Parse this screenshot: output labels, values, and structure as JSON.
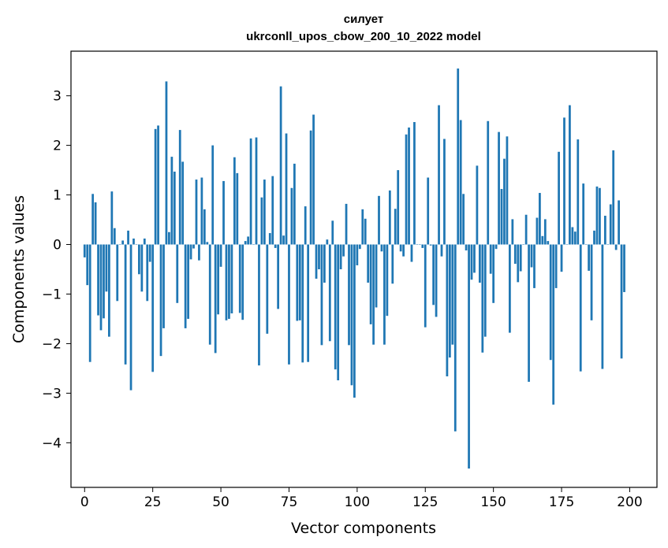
{
  "chart_data": {
    "type": "bar",
    "title": "силует",
    "subtitle": "ukrconll_upos_cbow_200_10_2022 model",
    "xlabel": "Vector components",
    "ylabel": "Components values",
    "xlim": [
      -5,
      210
    ],
    "ylim": [
      -4.9,
      3.9
    ],
    "xticks": [
      0,
      25,
      50,
      75,
      100,
      125,
      150,
      175,
      200
    ],
    "yticks": [
      -4,
      -3,
      -2,
      -1,
      0,
      1,
      2,
      3
    ],
    "bar_color": "#1f77b4",
    "grid": false,
    "values": [
      -0.26,
      -0.82,
      -2.37,
      1.02,
      0.85,
      -1.43,
      -1.73,
      -1.49,
      -0.95,
      -1.86,
      1.07,
      0.33,
      -1.14,
      0.0,
      0.08,
      -2.42,
      0.28,
      -2.94,
      0.12,
      0.0,
      -0.6,
      -0.95,
      0.12,
      -1.14,
      -0.35,
      -2.57,
      2.33,
      2.4,
      -2.25,
      -1.69,
      3.29,
      0.25,
      1.77,
      1.47,
      -1.18,
      2.31,
      1.67,
      -1.69,
      -1.5,
      -0.3,
      -0.08,
      1.31,
      -0.32,
      1.35,
      0.71,
      0.05,
      -2.02,
      2.0,
      -2.19,
      -1.41,
      -0.45,
      1.28,
      -1.53,
      -1.5,
      -1.39,
      1.76,
      1.44,
      -1.38,
      -1.52,
      0.07,
      0.16,
      2.14,
      0.0,
      2.16,
      -2.44,
      0.95,
      1.31,
      -1.8,
      0.23,
      1.38,
      -0.07,
      -1.3,
      3.19,
      0.18,
      2.24,
      -2.42,
      1.14,
      1.63,
      -1.54,
      -1.53,
      -2.38,
      0.77,
      -2.37,
      2.3,
      2.62,
      -0.69,
      -0.5,
      -2.03,
      -0.77,
      0.1,
      -1.95,
      0.48,
      -2.52,
      -2.74,
      -0.5,
      -0.24,
      0.82,
      -2.03,
      -2.84,
      -3.09,
      -0.42,
      -0.09,
      0.71,
      0.52,
      -0.77,
      -1.61,
      -2.02,
      -1.27,
      0.98,
      -0.14,
      -2.02,
      -1.44,
      1.09,
      -0.79,
      0.72,
      1.5,
      -0.14,
      -0.24,
      2.22,
      2.36,
      -0.35,
      2.47,
      0.0,
      0.0,
      -0.07,
      -1.67,
      1.35,
      -0.02,
      -1.22,
      -1.46,
      2.81,
      -0.24,
      2.13,
      -2.66,
      -2.28,
      -2.02,
      -3.77,
      3.55,
      2.51,
      1.02,
      -0.12,
      -4.52,
      -0.71,
      -0.57,
      1.59,
      -0.77,
      -2.18,
      -1.86,
      2.49,
      -0.59,
      -1.18,
      -0.09,
      2.27,
      1.12,
      1.73,
      2.18,
      -1.78,
      0.51,
      -0.39,
      -0.76,
      -0.54,
      0.0,
      0.6,
      -2.77,
      -0.46,
      -0.88,
      0.54,
      1.04,
      0.17,
      0.51,
      0.07,
      -2.33,
      -3.23,
      -0.88,
      1.87,
      -0.55,
      2.56,
      0.0,
      2.81,
      0.35,
      0.26,
      2.12,
      -2.56,
      1.23,
      0.0,
      -0.53,
      -1.53,
      0.28,
      1.17,
      1.14,
      -2.51,
      0.58,
      0.0,
      0.81,
      1.9,
      -0.11,
      0.89,
      -2.3,
      -0.96
    ]
  }
}
